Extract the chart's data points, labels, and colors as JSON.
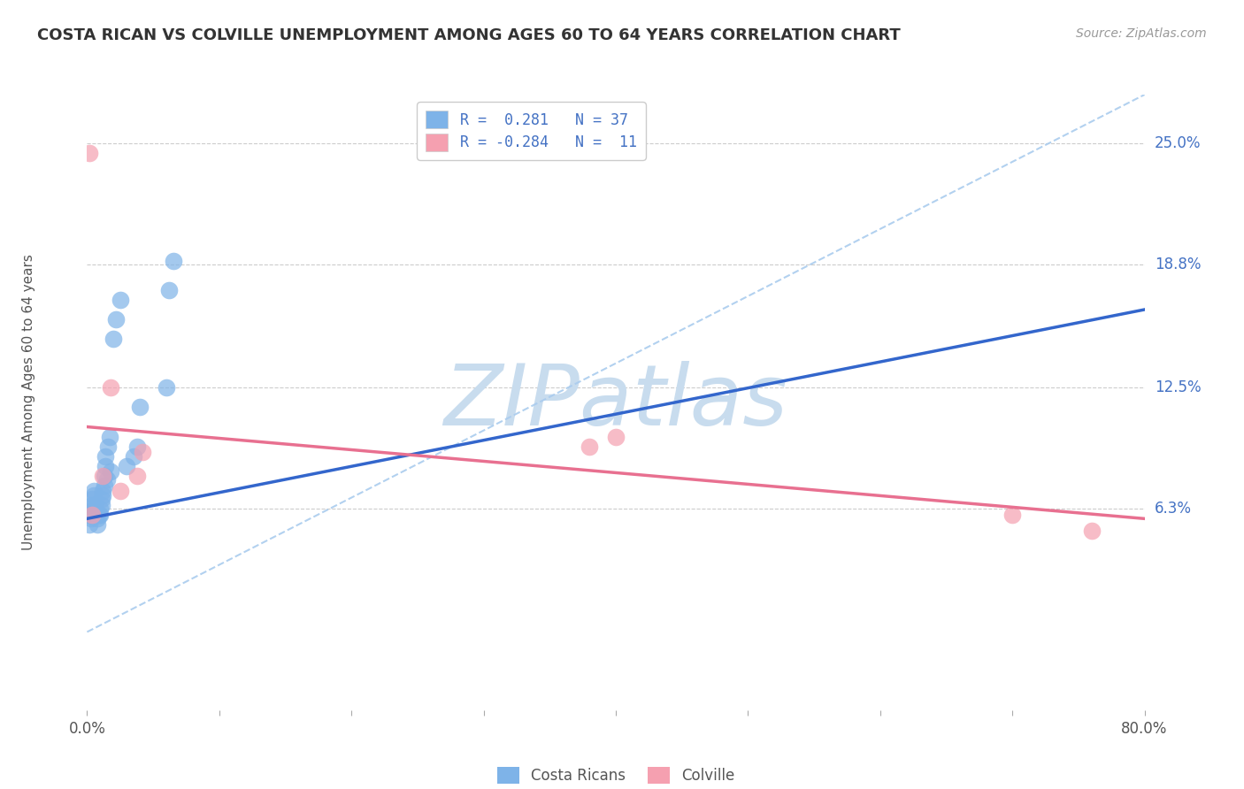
{
  "title": "COSTA RICAN VS COLVILLE UNEMPLOYMENT AMONG AGES 60 TO 64 YEARS CORRELATION CHART",
  "source": "Source: ZipAtlas.com",
  "ylabel": "Unemployment Among Ages 60 to 64 years",
  "xmin": 0.0,
  "xmax": 0.8,
  "ymin": -0.04,
  "ymax": 0.275,
  "blue_color": "#7EB3E8",
  "pink_color": "#F5A0B0",
  "blue_line_color": "#3366CC",
  "pink_line_color": "#E87090",
  "dash_line_color": "#AACCEE",
  "watermark_color": "#C8DCEE",
  "blue_scatter_x": [
    0.002,
    0.002,
    0.003,
    0.003,
    0.004,
    0.004,
    0.005,
    0.005,
    0.006,
    0.007,
    0.008,
    0.008,
    0.009,
    0.01,
    0.01,
    0.011,
    0.011,
    0.012,
    0.012,
    0.013,
    0.013,
    0.014,
    0.014,
    0.015,
    0.016,
    0.017,
    0.018,
    0.02,
    0.022,
    0.025,
    0.03,
    0.035,
    0.038,
    0.04,
    0.06,
    0.062,
    0.065
  ],
  "blue_scatter_y": [
    0.055,
    0.06,
    0.058,
    0.062,
    0.065,
    0.068,
    0.07,
    0.072,
    0.065,
    0.06,
    0.055,
    0.058,
    0.06,
    0.06,
    0.063,
    0.065,
    0.068,
    0.07,
    0.072,
    0.075,
    0.08,
    0.085,
    0.09,
    0.078,
    0.095,
    0.1,
    0.082,
    0.15,
    0.16,
    0.17,
    0.085,
    0.09,
    0.095,
    0.115,
    0.125,
    0.175,
    0.19
  ],
  "pink_scatter_x": [
    0.002,
    0.004,
    0.012,
    0.018,
    0.025,
    0.038,
    0.042,
    0.38,
    0.4,
    0.7,
    0.76
  ],
  "pink_scatter_y": [
    0.245,
    0.06,
    0.08,
    0.125,
    0.072,
    0.08,
    0.092,
    0.095,
    0.1,
    0.06,
    0.052
  ],
  "blue_line_x": [
    0.0,
    0.8
  ],
  "blue_line_y": [
    0.058,
    0.165
  ],
  "pink_line_x": [
    0.0,
    0.8
  ],
  "pink_line_y": [
    0.105,
    0.058
  ],
  "diag_line_x": [
    0.0,
    0.8
  ],
  "diag_line_y": [
    0.0,
    0.275
  ],
  "ytick_vals": [
    0.0,
    0.063,
    0.125,
    0.188,
    0.25
  ],
  "ytick_labels": [
    "",
    "6.3%",
    "12.5%",
    "18.8%",
    "25.0%"
  ],
  "xtick_vals": [
    0.0,
    0.1,
    0.2,
    0.3,
    0.4,
    0.5,
    0.6,
    0.7,
    0.8
  ],
  "xtick_labels": [
    "0.0%",
    "",
    "",
    "",
    "",
    "",
    "",
    "",
    "80.0%"
  ],
  "legend1_labels": [
    "R =  0.281   N = 37",
    "R = -0.284   N =  11"
  ],
  "legend2_labels": [
    "Costa Ricans",
    "Colville"
  ],
  "title_fontsize": 13,
  "source_fontsize": 10,
  "axis_label_fontsize": 11,
  "tick_fontsize": 12,
  "legend_fontsize": 12
}
